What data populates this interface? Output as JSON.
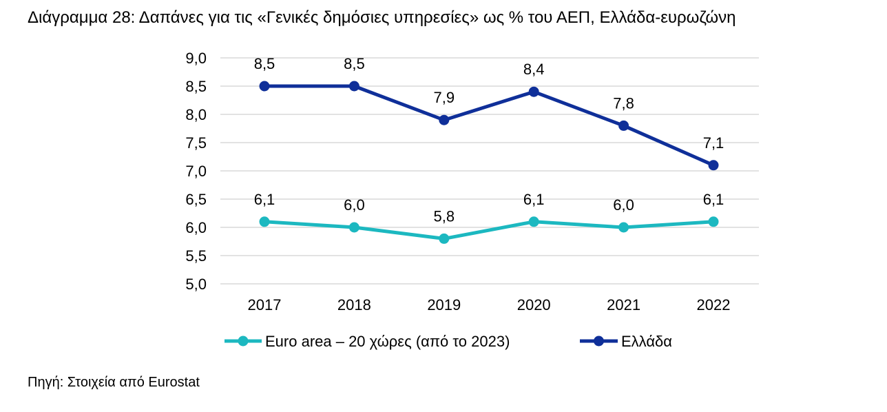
{
  "title": "Διάγραμμα 28: Δαπάνες για τις «Γενικές δημόσιες υπηρεσίες» ως % του ΑΕΠ, Ελλάδα-ευρωζώνη",
  "source": "Πηγή: Στοιχεία από Eurostat",
  "chart_data": {
    "type": "line",
    "title": "Διάγραμμα 28: Δαπάνες για τις «Γενικές δημόσιες υπηρεσίες» ως % του ΑΕΠ, Ελλάδα-ευρωζώνη",
    "xlabel": "",
    "ylabel": "",
    "categories": [
      "2017",
      "2018",
      "2019",
      "2020",
      "2021",
      "2022"
    ],
    "ylim": [
      5.0,
      9.0
    ],
    "yticks": [
      "5,0",
      "5,5",
      "6,0",
      "6,5",
      "7,0",
      "7,5",
      "8,0",
      "8,5",
      "9,0"
    ],
    "ytick_values": [
      5.0,
      5.5,
      6.0,
      6.5,
      7.0,
      7.5,
      8.0,
      8.5,
      9.0
    ],
    "grid": true,
    "legend_position": "bottom",
    "series": [
      {
        "name": "Euro area – 20 χώρες (από το 2023)",
        "color": "#1cb8c0",
        "values": [
          6.1,
          6.0,
          5.8,
          6.1,
          6.0,
          6.1
        ],
        "labels": [
          "6,1",
          "6,0",
          "5,8",
          "6,1",
          "6,0",
          "6,1"
        ]
      },
      {
        "name": "Ελλάδα",
        "color": "#0f2f99",
        "values": [
          8.5,
          8.5,
          7.9,
          8.4,
          7.8,
          7.1
        ],
        "labels": [
          "8,5",
          "8,5",
          "7,9",
          "8,4",
          "7,8",
          "7,1"
        ]
      }
    ]
  }
}
